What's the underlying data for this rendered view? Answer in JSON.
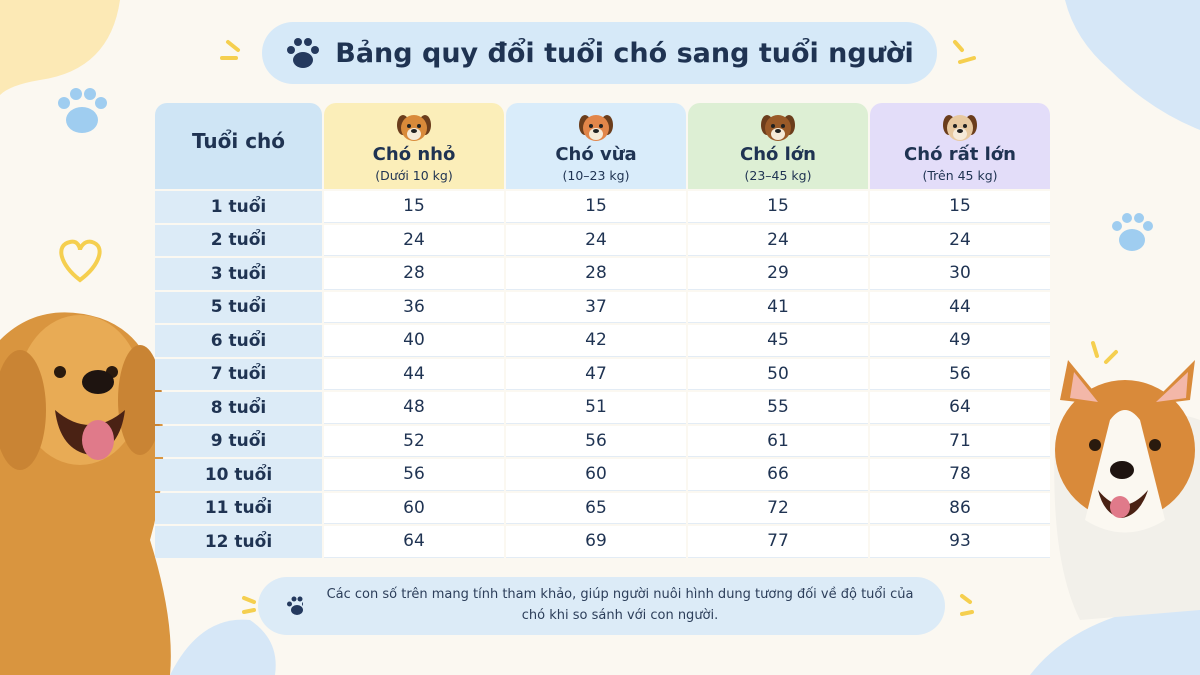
{
  "title": "Bảng quy đổi tuổi chó sang tuổi người",
  "table": {
    "corner": "Tuổi chó",
    "columns": [
      {
        "name": "Chó nhỏ",
        "note": "(Dưới 10 kg)"
      },
      {
        "name": "Chó vừa",
        "note": "(10–23 kg)"
      },
      {
        "name": "Chó lớn",
        "note": "(23–45 kg)"
      },
      {
        "name": "Chó rất lớn",
        "note": "(Trên 45 kg)"
      }
    ],
    "rows": [
      {
        "label": "1 tuổi",
        "values": [
          15,
          15,
          15,
          15
        ]
      },
      {
        "label": "2 tuổi",
        "values": [
          24,
          24,
          24,
          24
        ]
      },
      {
        "label": "3 tuổi",
        "values": [
          28,
          28,
          29,
          30
        ]
      },
      {
        "label": "5 tuổi",
        "values": [
          36,
          37,
          41,
          44
        ]
      },
      {
        "label": "6 tuổi",
        "values": [
          40,
          42,
          45,
          49
        ]
      },
      {
        "label": "7 tuổi",
        "values": [
          44,
          47,
          50,
          56
        ]
      },
      {
        "label": "8 tuổi",
        "values": [
          48,
          51,
          55,
          64
        ]
      },
      {
        "label": "9 tuổi",
        "values": [
          52,
          56,
          61,
          71
        ]
      },
      {
        "label": "10 tuổi",
        "values": [
          56,
          60,
          66,
          78
        ]
      },
      {
        "label": "11 tuổi",
        "values": [
          60,
          65,
          72,
          86
        ]
      },
      {
        "label": "12 tuổi",
        "values": [
          64,
          69,
          77,
          93
        ]
      }
    ]
  },
  "footnote": "Các con số trên mang tính tham khảo, giúp người nuôi hình dung tương đối về độ tuổi của chó khi so sánh với con người."
}
